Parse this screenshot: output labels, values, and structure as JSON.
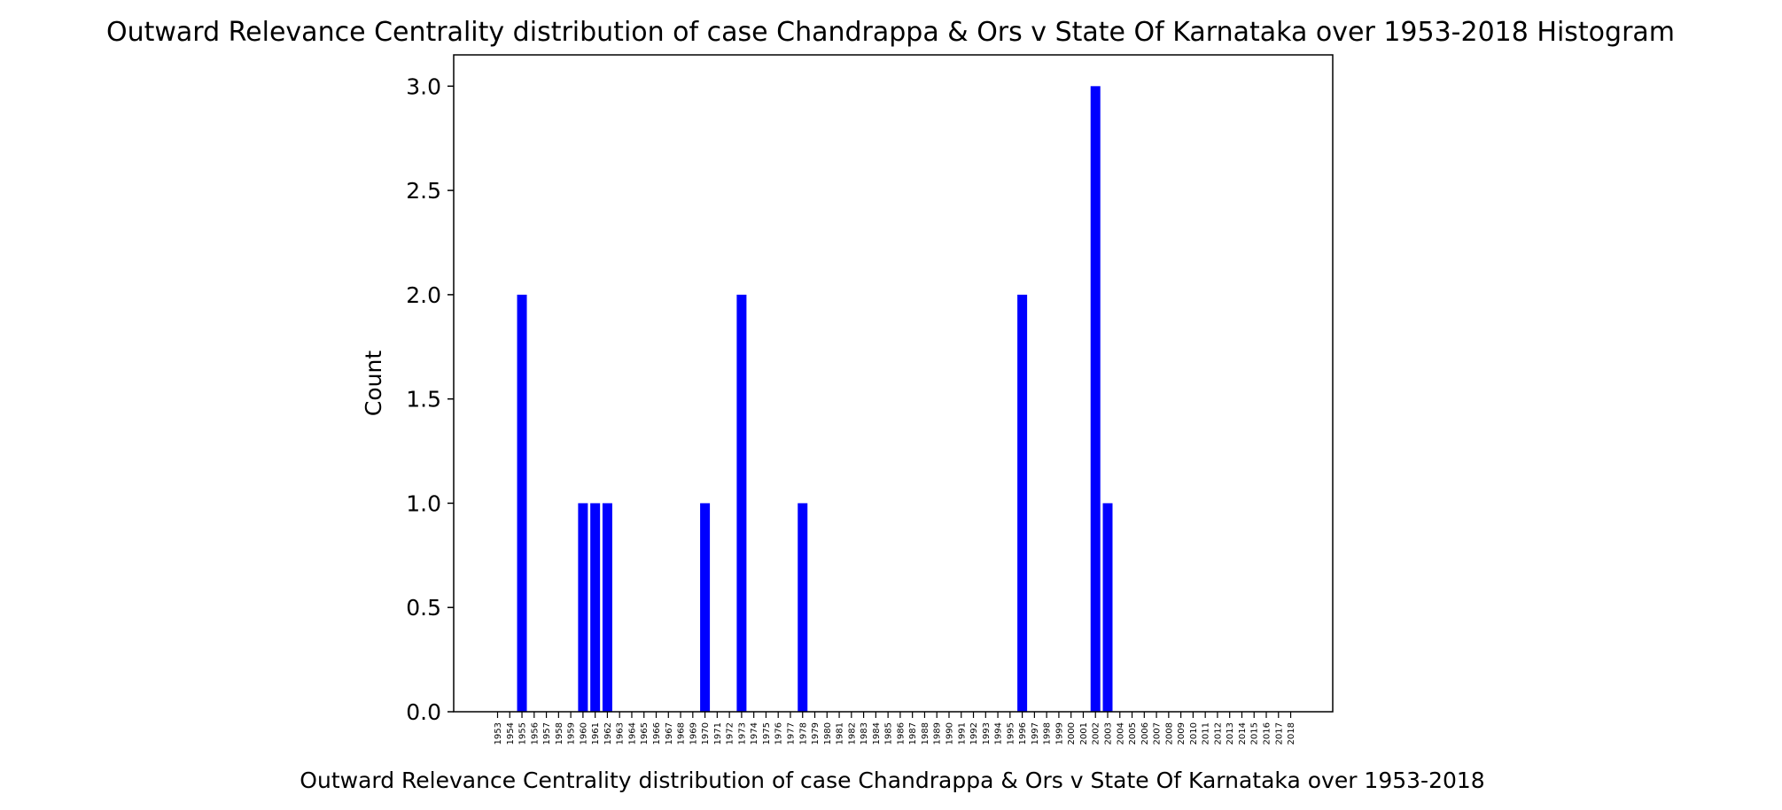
{
  "chart_data": {
    "type": "bar",
    "title": "Outward Relevance Centrality distribution of case Chandrappa & Ors v State Of Karnataka over 1953-2018 Histogram",
    "xlabel": "Outward Relevance Centrality distribution of case Chandrappa & Ors v State Of Karnataka over 1953-2018",
    "ylabel": "Count",
    "ylim": [
      0,
      3.15
    ],
    "yticks": [
      "0.0",
      "0.5",
      "1.0",
      "1.5",
      "2.0",
      "2.5",
      "3.0"
    ],
    "grid": false,
    "bar_color": "#0000ff",
    "categories": [
      "1953",
      "1954",
      "1955",
      "1956",
      "1957",
      "1958",
      "1959",
      "1960",
      "1961",
      "1962",
      "1963",
      "1964",
      "1965",
      "1966",
      "1967",
      "1968",
      "1969",
      "1970",
      "1971",
      "1972",
      "1973",
      "1974",
      "1975",
      "1976",
      "1977",
      "1978",
      "1979",
      "1980",
      "1981",
      "1982",
      "1983",
      "1984",
      "1985",
      "1986",
      "1987",
      "1988",
      "1989",
      "1990",
      "1991",
      "1992",
      "1993",
      "1994",
      "1995",
      "1996",
      "1997",
      "1998",
      "1999",
      "2000",
      "2001",
      "2002",
      "2003",
      "2004",
      "2005",
      "2006",
      "2007",
      "2008",
      "2009",
      "2010",
      "2011",
      "2012",
      "2013",
      "2014",
      "2015",
      "2016",
      "2017",
      "2018"
    ],
    "values": [
      0,
      0,
      2,
      0,
      0,
      0,
      0,
      1,
      1,
      1,
      0,
      0,
      0,
      0,
      0,
      0,
      0,
      1,
      0,
      0,
      2,
      0,
      0,
      0,
      0,
      1,
      0,
      0,
      0,
      0,
      0,
      0,
      0,
      0,
      0,
      0,
      0,
      0,
      0,
      0,
      0,
      0,
      0,
      2,
      0,
      0,
      0,
      0,
      0,
      3,
      1,
      0,
      0,
      0,
      0,
      0,
      0,
      0,
      0,
      0,
      0,
      0,
      0,
      0,
      0,
      0
    ]
  }
}
